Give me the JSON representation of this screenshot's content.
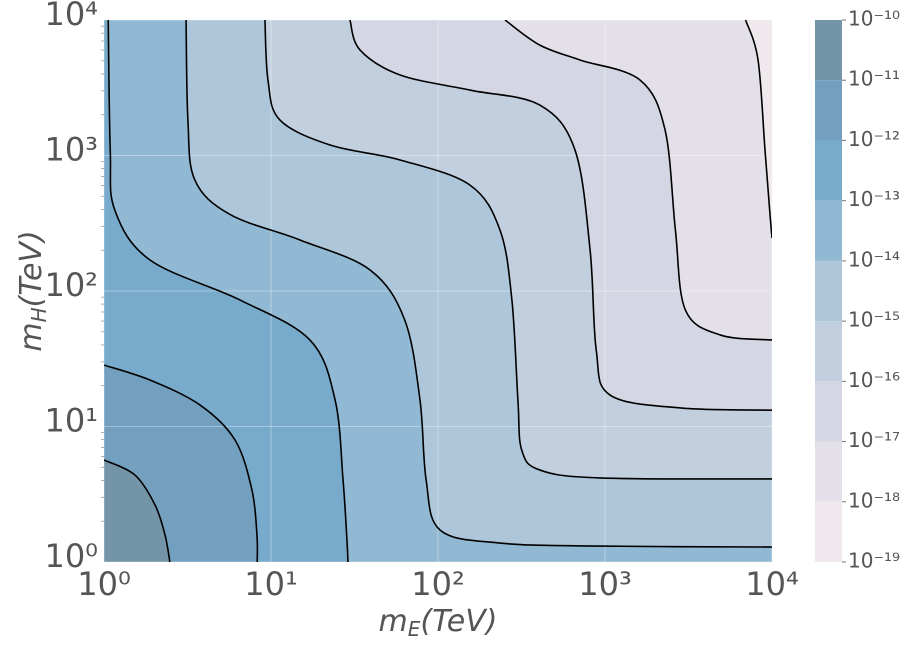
{
  "chart_data": {
    "type": "contour",
    "x_label": {
      "base": "m",
      "sub": "E",
      "rest": "(TeV)"
    },
    "y_label": {
      "base": "m",
      "sub": "H",
      "rest": "(TeV)"
    },
    "log_x": true,
    "log_y": true,
    "grid": true,
    "xlim": [
      1,
      10000
    ],
    "ylim": [
      1,
      10000
    ],
    "xticks": [
      {
        "value": 1,
        "label": "10⁰"
      },
      {
        "value": 10,
        "label": "10¹"
      },
      {
        "value": 100,
        "label": "10²"
      },
      {
        "value": 1000,
        "label": "10³"
      },
      {
        "value": 10000,
        "label": "10⁴"
      }
    ],
    "yticks": [
      {
        "value": 1,
        "label": "10⁰"
      },
      {
        "value": 10,
        "label": "10¹"
      },
      {
        "value": 100,
        "label": "10²"
      },
      {
        "value": 1000,
        "label": "10³"
      },
      {
        "value": 10000,
        "label": "10⁴"
      }
    ],
    "line_color": "#000000",
    "lines": [
      {
        "x": [
          1,
          1.53,
          2.02,
          2.32,
          2.48
        ],
        "y": [
          5.66,
          4.39,
          2.64,
          1.58,
          1
        ]
      },
      {
        "x": [
          1,
          1.89,
          3.76,
          6.09,
          7.69,
          8.24,
          8.27
        ],
        "y": [
          28.4,
          22.0,
          14.4,
          7.95,
          3.4,
          1.58,
          1
        ]
      },
      {
        "x": [
          1.06,
          1.09,
          1.16,
          1.89,
          6.51,
          17.1,
          24.2,
          27.0,
          28.5,
          28.9
        ],
        "y": [
          10000,
          1099,
          396,
          169,
          85.9,
          43.5,
          15.7,
          4.03,
          1.45,
          1
        ]
      },
      {
        "x": [
          3.1,
          3.18,
          3.5,
          5.68,
          14.9,
          39.2,
          63.2,
          78.0,
          84.9,
          103,
          235,
          930,
          10000
        ],
        "y": [
          10000,
          1830,
          659,
          367,
          238,
          143,
          61.1,
          15.7,
          4.03,
          1.72,
          1.38,
          1.31,
          1.29
        ]
      },
      {
        "x": [
          9.2,
          9.59,
          11.3,
          22.6,
          59.3,
          155,
          235,
          277,
          301,
          317,
          406,
          930,
          10000
        ],
        "y": [
          10000,
          3610,
          1830,
          1195,
          927,
          606,
          282,
          85.9,
          15.7,
          6.71,
          4.78,
          4.17,
          4.1
        ]
      },
      {
        "x": [
          29.7,
          34.1,
          59.3,
          155,
          406,
          661,
          814,
          886,
          1070,
          2830,
          10000
        ],
        "y": [
          10000,
          6010,
          3930,
          3040,
          2360,
          1099,
          201,
          36.7,
          17.1,
          13.7,
          13.2
        ]
      },
      {
        "x": [
          252,
          406,
          708,
          1620,
          2290,
          2640,
          3030,
          4920,
          10000
        ],
        "y": [
          10000,
          6540,
          5070,
          3610,
          1540,
          282,
          72.4,
          47.3,
          43.5
        ]
      },
      {
        "x": [
          6950,
          8250,
          9080,
          9730,
          10000
        ],
        "y": [
          10000,
          5070,
          1099,
          367,
          246
        ]
      }
    ],
    "colorbar": {
      "ticks": [
        {
          "value": 1e-19,
          "label": "10⁻¹⁹"
        },
        {
          "value": 1e-18,
          "label": "10⁻¹⁸"
        },
        {
          "value": 1e-17,
          "label": "10⁻¹⁷"
        },
        {
          "value": 1e-16,
          "label": "10⁻¹⁶"
        },
        {
          "value": 1e-15,
          "label": "10⁻¹⁵"
        },
        {
          "value": 1e-14,
          "label": "10⁻¹⁴"
        },
        {
          "value": 1e-13,
          "label": "10⁻¹³"
        },
        {
          "value": 1e-12,
          "label": "10⁻¹²"
        },
        {
          "value": 1e-11,
          "label": "10⁻¹¹"
        },
        {
          "value": 1e-10,
          "label": "10⁻¹⁰"
        }
      ],
      "colors": [
        "#efe8ed",
        "#e3e0e9",
        "#d4d7e3",
        "#c2cfdf",
        "#adc6da",
        "#92b9d3",
        "#78abcb",
        "#74a0bf",
        "#7495a8"
      ]
    }
  }
}
